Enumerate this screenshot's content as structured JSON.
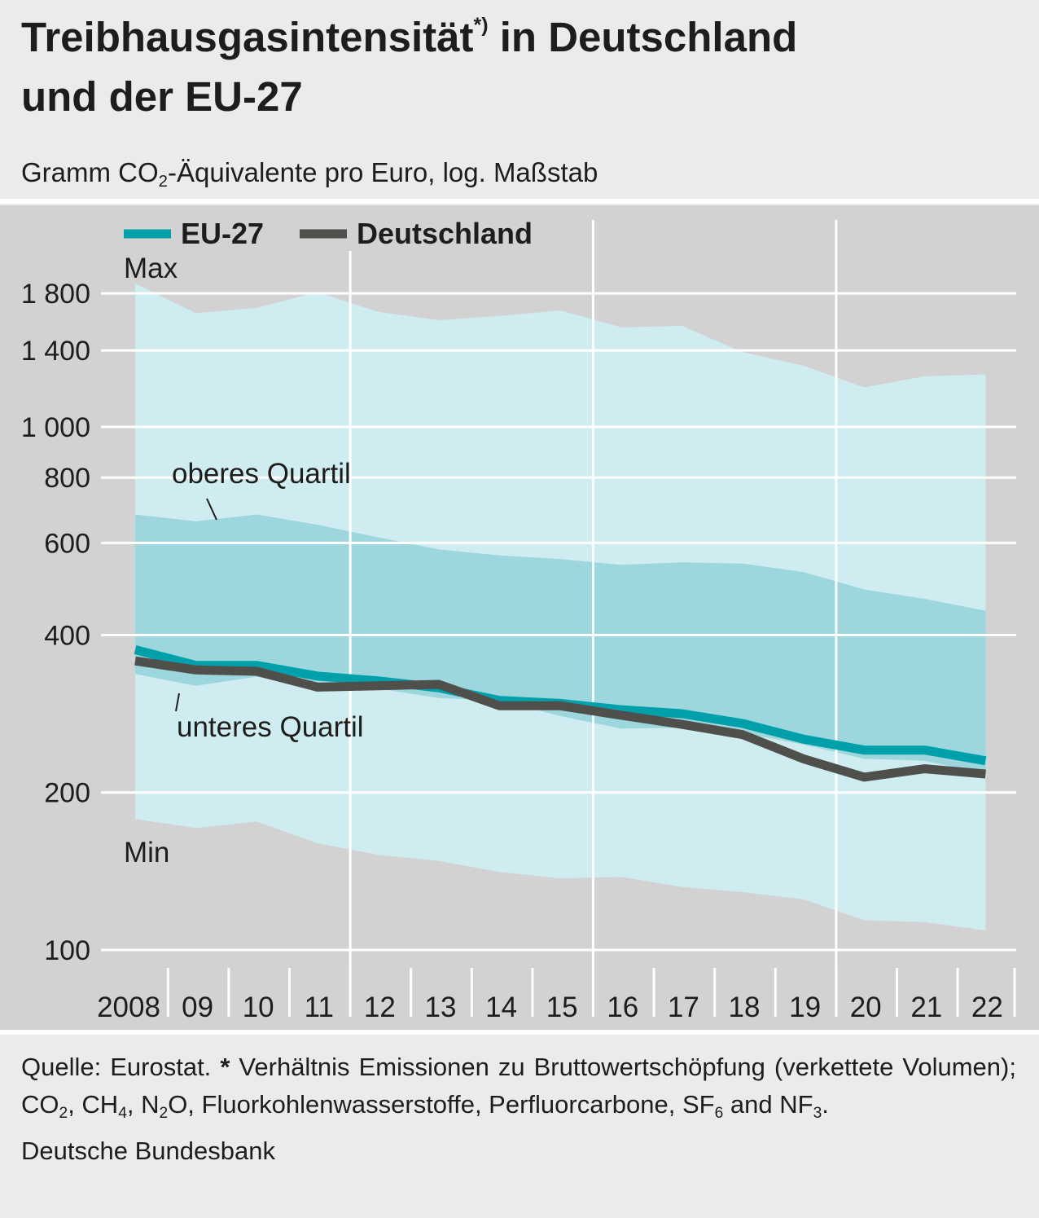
{
  "header": {
    "title_part1": "Treibhausgasintensität",
    "title_sup": "*)",
    "title_part2": " in Deutschland",
    "title_line2": "und der EU-27",
    "subtitle_pre": "Gramm CO",
    "subtitle_sub": "2",
    "subtitle_post": "-Äquivalente pro Euro, log. Maßstab"
  },
  "chart_data": {
    "type": "line",
    "y_scale": "log",
    "ylim": [
      100,
      2000
    ],
    "y_ticks": [
      100,
      200,
      400,
      600,
      800,
      1000,
      1400,
      1800
    ],
    "y_tick_labels": [
      "100",
      "200",
      "400",
      "600",
      "800",
      "1 000",
      "1 400",
      "1 800"
    ],
    "x": [
      2008,
      2009,
      2010,
      2011,
      2012,
      2013,
      2014,
      2015,
      2016,
      2017,
      2018,
      2019,
      2020,
      2021,
      2022
    ],
    "x_tick_labels": [
      "2008",
      "09",
      "10",
      "11",
      "12",
      "13",
      "14",
      "15",
      "16",
      "17",
      "18",
      "19",
      "20",
      "21",
      "22"
    ],
    "legend_position": "top-left",
    "grid": true,
    "series": [
      {
        "name": "EU-27",
        "color": "#00a0aa",
        "values": [
          375,
          350,
          350,
          334,
          327,
          317,
          300,
          296,
          288,
          283,
          271,
          253,
          241,
          241,
          230
        ]
      },
      {
        "name": "Deutschland",
        "color": "#4f4f4c",
        "values": [
          357,
          343,
          341,
          318,
          320,
          322,
          293,
          293,
          281,
          270,
          258,
          232,
          214,
          222,
          217
        ]
      }
    ],
    "bands": [
      {
        "label_top": "Max",
        "label_bottom": "Min",
        "color": "#cfecf1",
        "upper": [
          1880,
          1650,
          1690,
          1810,
          1660,
          1600,
          1630,
          1670,
          1550,
          1560,
          1390,
          1310,
          1190,
          1250,
          1260
        ],
        "lower": [
          178,
          171,
          176,
          160,
          152,
          148,
          141,
          137,
          138,
          132,
          129,
          125,
          114,
          113,
          109
        ]
      },
      {
        "label_top": "oberes Quartil",
        "label_bottom": "unteres Quartil",
        "color": "#9dd6dd",
        "upper": [
          680,
          660,
          680,
          650,
          615,
          583,
          568,
          559,
          545,
          551,
          548,
          528,
          489,
          469,
          445
        ],
        "lower": [
          337,
          320,
          333,
          315,
          316,
          303,
          300,
          280,
          265,
          266,
          260,
          247,
          232,
          230,
          217
        ]
      }
    ]
  },
  "footer": {
    "source_label": "Quelle: Eurostat.",
    "asterisk": "*",
    "note_1": "Verhältnis Emissionen zu Bruttowertschöpfung (ver­kettete Volumen); CO",
    "note_sub_1": "2",
    "note_2": ", CH",
    "note_sub_2": "4",
    "note_3": ", N",
    "note_sub_3": "2",
    "note_4": "O, Fluorkohlenwasserstoffe, Perfluorcar­bone, SF",
    "note_sub_4": "6",
    "note_5": " and NF",
    "note_sub_5": "3",
    "note_6": ".",
    "publisher": "Deutsche Bundesbank"
  }
}
